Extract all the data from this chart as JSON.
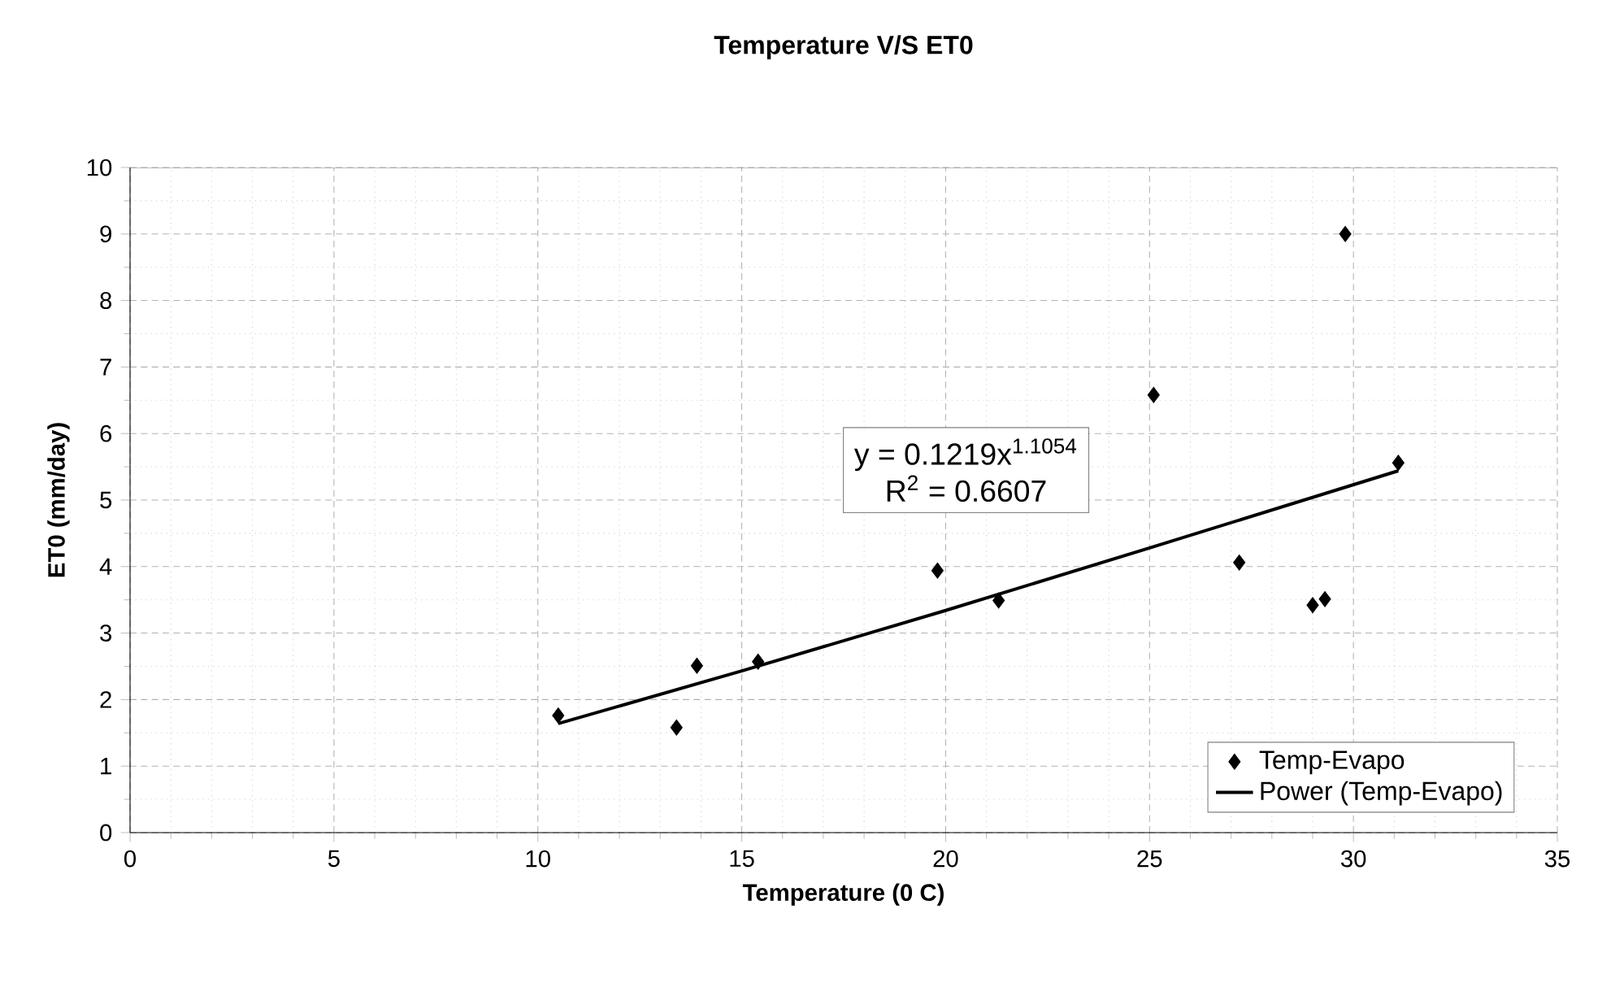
{
  "chart_data": {
    "type": "scatter",
    "title": "Temperature V/S ET0",
    "xlabel": "Temperature (0 C)",
    "ylabel": "ET0 (mm/day)",
    "annotations": [
      "y = 0.1219x$^{1.1054}$",
      "R$^{2}$ = 0.6607"
    ],
    "xlim": [
      0,
      35
    ],
    "xticks": [
      0,
      5,
      10,
      15,
      20,
      25,
      30,
      35
    ],
    "ylim": [
      0,
      10
    ],
    "yticks": [
      0,
      1,
      2,
      3,
      4,
      5,
      6,
      7,
      8,
      9,
      10
    ],
    "grid": true,
    "legend": "bottom right",
    "series": [
      {
        "name": "Temp-Evapo",
        "marker": "diamond",
        "color": "#000000",
        "x": [
          10.5,
          13.4,
          13.9,
          15.4,
          19.8,
          21.3,
          25.1,
          27.2,
          29.0,
          29.3,
          29.8,
          31.1
        ],
        "values": [
          1.76,
          1.58,
          2.51,
          2.57,
          3.94,
          3.49,
          6.58,
          4.06,
          3.42,
          3.51,
          9.0,
          5.56
        ]
      },
      {
        "name": "Power (Temp-Evapo)",
        "type": "line",
        "marker": "none",
        "line_style": "solid",
        "color": "#000000",
        "x": [
          10.5,
          15,
          20,
          25,
          31.1
        ],
        "values": [
          1.64,
          2.43,
          3.34,
          4.28,
          5.44
        ]
      }
    ]
  }
}
